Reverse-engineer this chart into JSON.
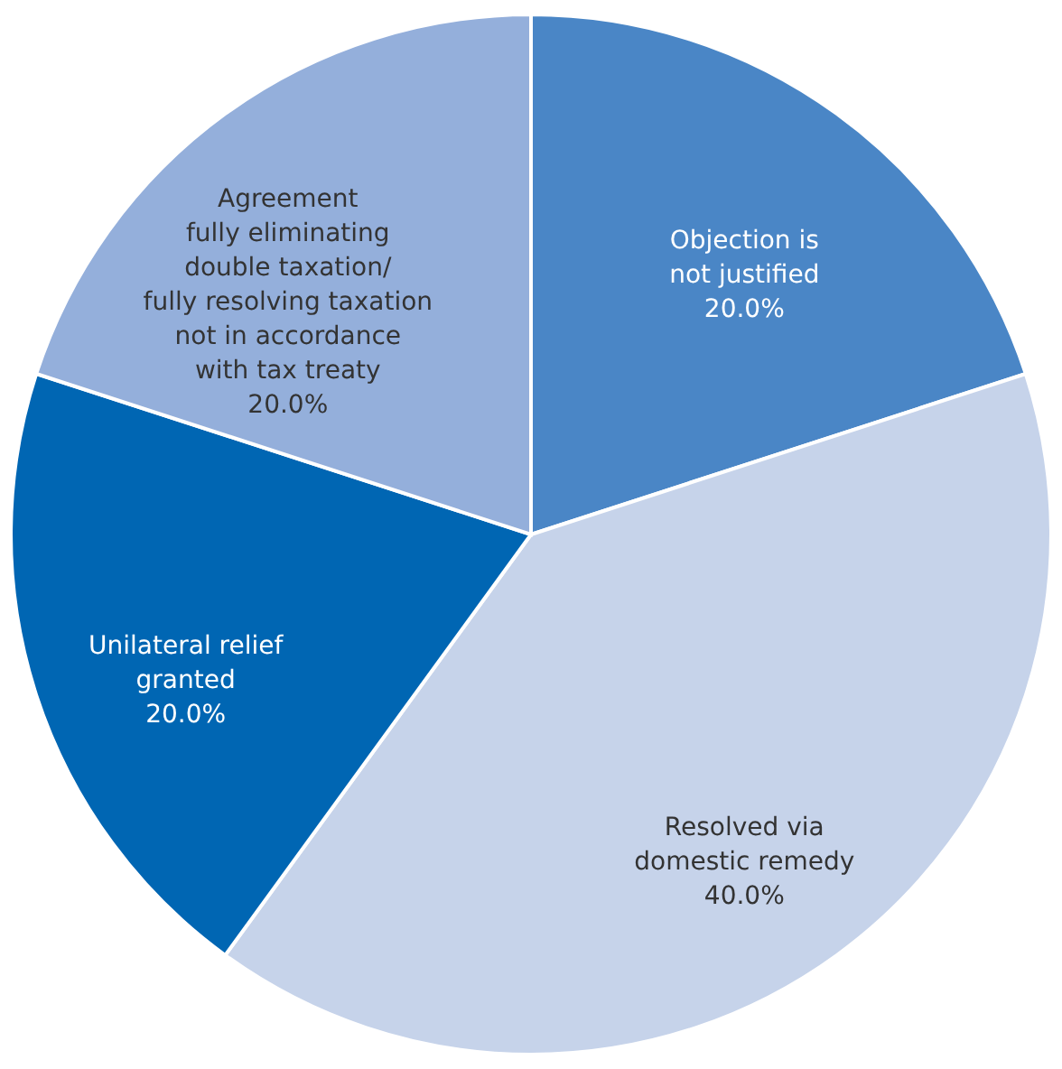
{
  "chart_data": {
    "type": "pie",
    "categories": [
      "Objection is\nnot justified",
      "Resolved via\ndomestic remedy",
      "Unilateral relief\ngranted",
      "Agreement\nfully eliminating\ndouble taxation/\nfully resolving taxation\nnot in accordance\nwith tax treaty"
    ],
    "values": [
      20,
      40,
      20,
      20
    ],
    "colors": [
      "#4a86c6",
      "#c6d3ea",
      "#0066b3",
      "#94afdb"
    ],
    "value_labels": [
      "20.0%",
      "40.0%",
      "20.0%",
      "20.0%"
    ]
  }
}
